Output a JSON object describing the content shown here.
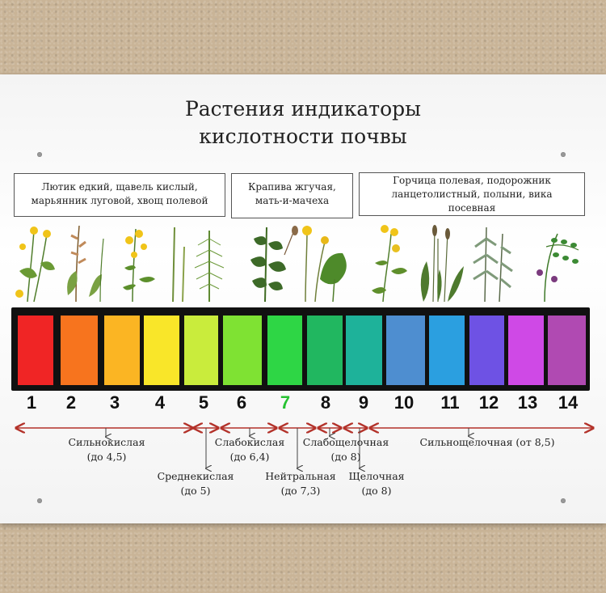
{
  "title": {
    "line1": "Растения индикаторы",
    "line2": "кислотности почвы"
  },
  "plant_groups": [
    {
      "line1": "Лютик едкий, щавель кислый,",
      "line2": "марьянник луговой, хвощ полевой"
    },
    {
      "line1": "Крапива жгучая,",
      "line2": "мать-и-мачеха"
    },
    {
      "line1": "Горчица полевая, подорожник",
      "line2": "ланцетолистный, полыни, вика",
      "line3": "посевная"
    }
  ],
  "ph_scale": [
    {
      "label": "1",
      "color": "#f02525"
    },
    {
      "label": "2",
      "color": "#f7741e"
    },
    {
      "label": "3",
      "color": "#fbb523"
    },
    {
      "label": "4",
      "color": "#f9e629"
    },
    {
      "label": "5",
      "color": "#c9ec3c"
    },
    {
      "label": "6",
      "color": "#7fe233"
    },
    {
      "label": "7",
      "color": "#2ed645",
      "highlight": "#27c232"
    },
    {
      "label": "8",
      "color": "#21b760"
    },
    {
      "label": "9",
      "color": "#1eb29a"
    },
    {
      "label": "10",
      "color": "#4e8ed0"
    },
    {
      "label": "11",
      "color": "#2b9fe0"
    },
    {
      "label": "12",
      "color": "#6e52e4"
    },
    {
      "label": "13",
      "color": "#cf49e6"
    },
    {
      "label": "14",
      "color": "#b04ab2"
    }
  ],
  "ranges": [
    {
      "name": "Сильнокислая",
      "limit": "(до 4,5)"
    },
    {
      "name": "Среднекислая",
      "limit": "(до 5)"
    },
    {
      "name": "Слабокислая",
      "limit": "(до 6,4)"
    },
    {
      "name": "Нейтральная",
      "limit": "(до 7,3)"
    },
    {
      "name": "Слабощелочная",
      "limit": "(до 8)"
    },
    {
      "name": "Щелочная",
      "limit": "(до 8)"
    },
    {
      "name": "Сильнощелочная (от 8,5)"
    }
  ],
  "colors": {
    "arrow": "#b3322a",
    "leaf": "#4f7d2a",
    "flower_yellow": "#f0c419",
    "flower_purple": "#7b3b7e"
  },
  "icons": [
    "buttercup-icon",
    "sorrel-icon",
    "cow-wheat-icon",
    "horsetail-icon",
    "nettle-icon",
    "coltsfoot-icon",
    "mustard-icon",
    "plantain-icon",
    "wormwood-icon",
    "vetch-icon"
  ]
}
